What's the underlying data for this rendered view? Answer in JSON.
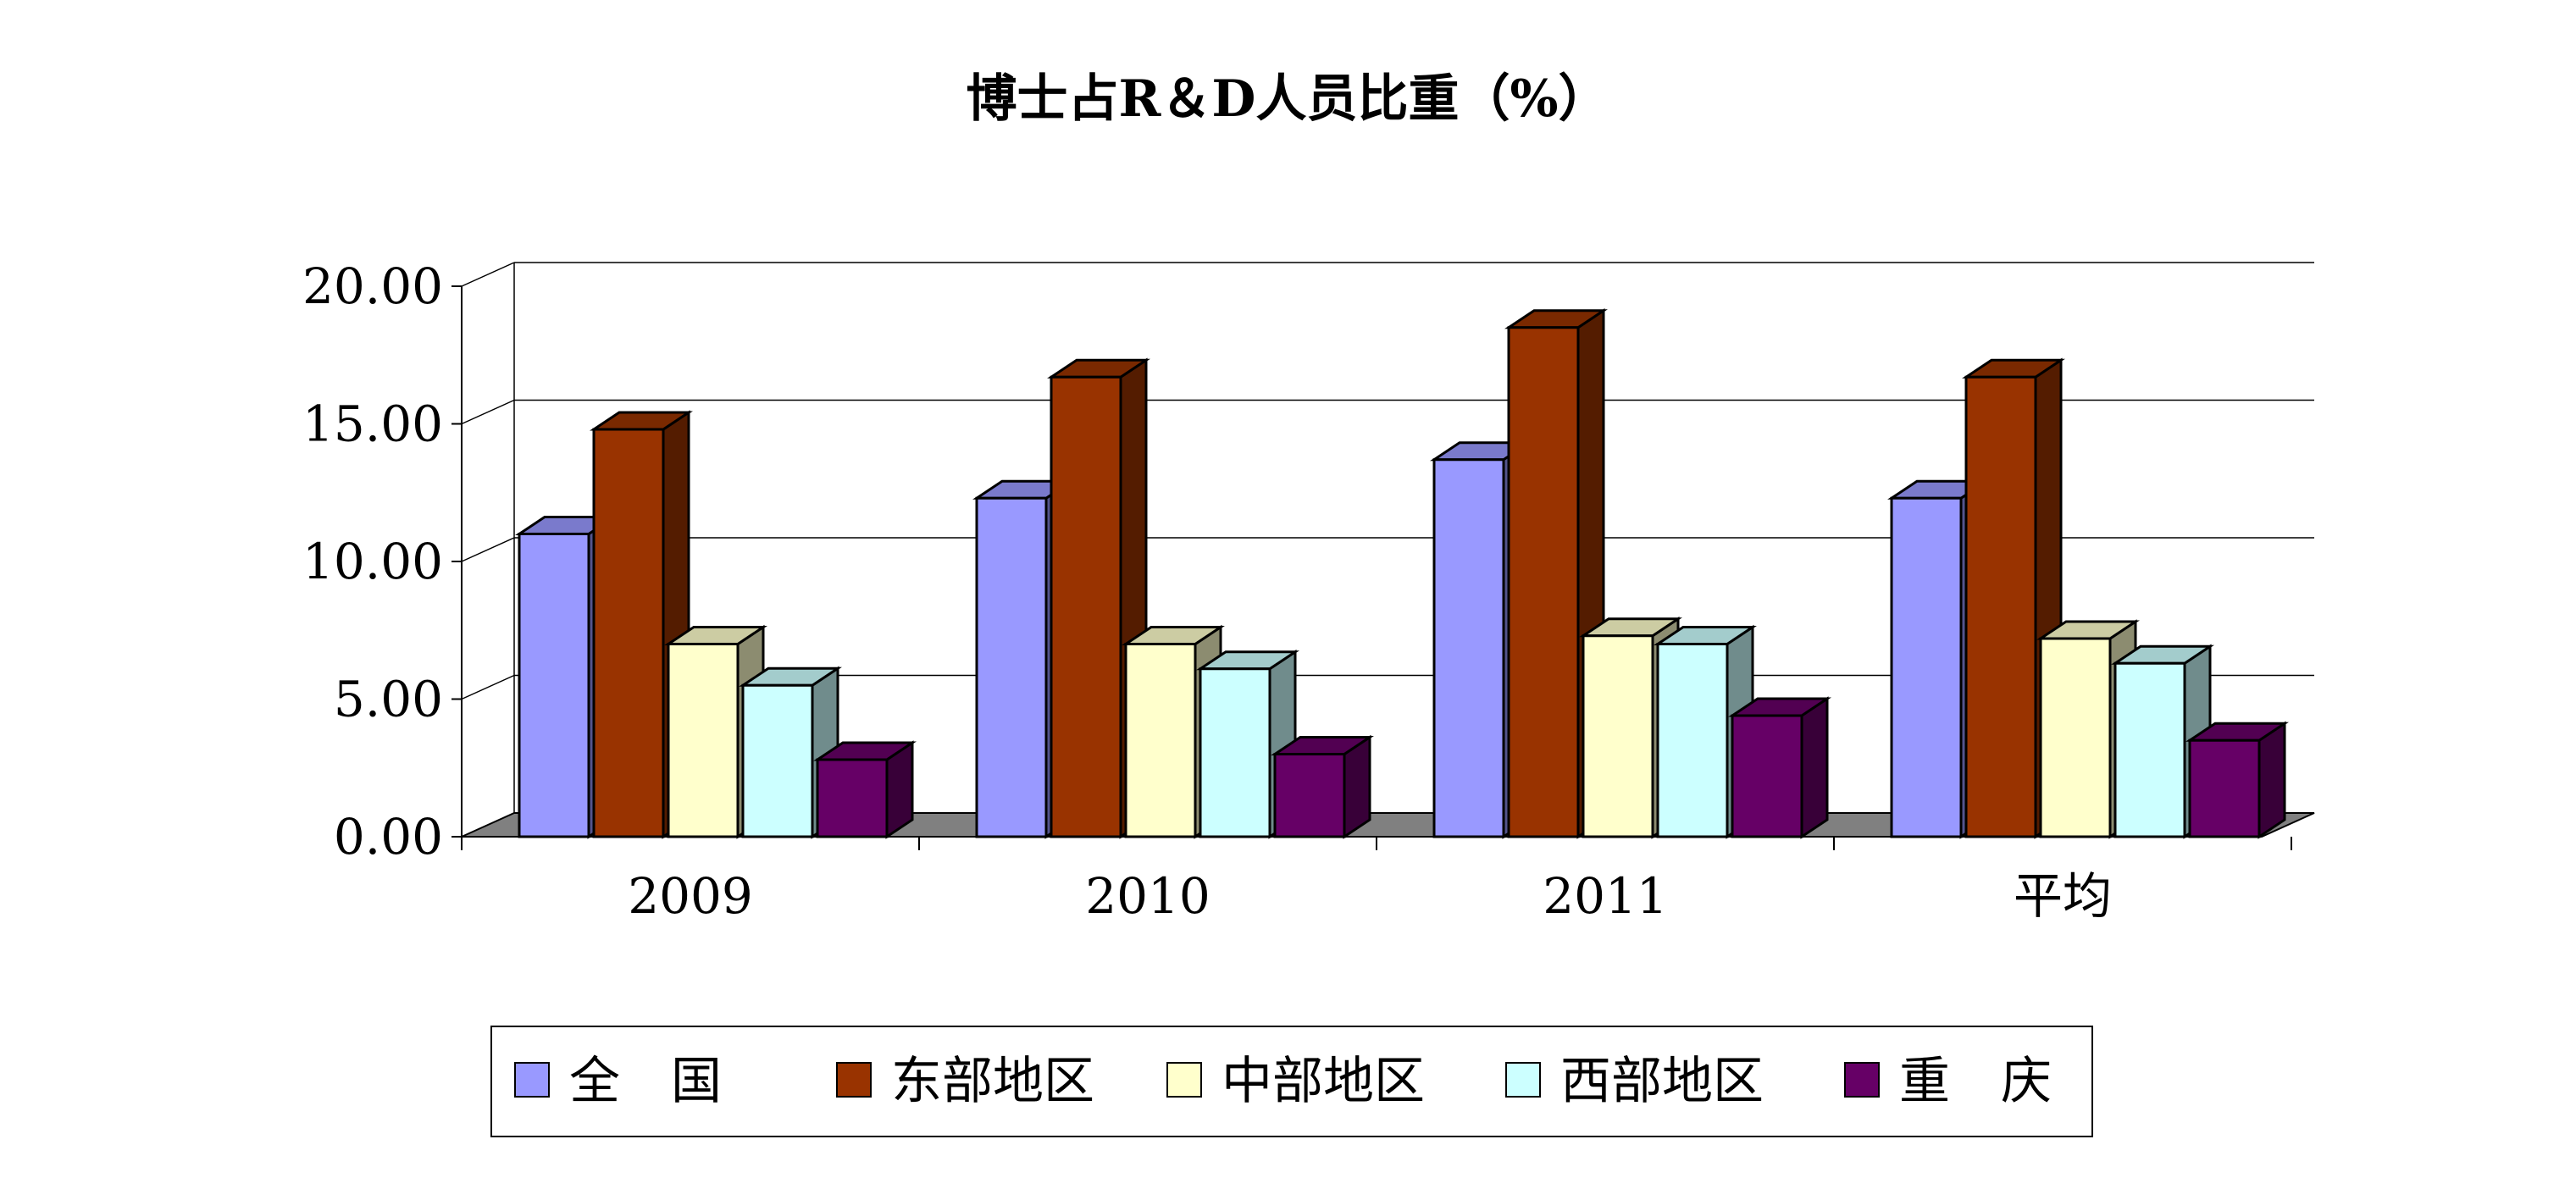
{
  "chart_data": {
    "type": "bar",
    "title": "博士占R＆D人员比重（%）",
    "categories": [
      "2009",
      "2010",
      "2011",
      "平均"
    ],
    "series": [
      {
        "name": "全　国",
        "color": "#9999FF",
        "values": [
          11.0,
          12.3,
          13.7,
          12.3
        ]
      },
      {
        "name": "东部地区",
        "color": "#993300",
        "values": [
          14.8,
          16.7,
          18.5,
          16.7
        ]
      },
      {
        "name": "中部地区",
        "color": "#FFFFCC",
        "values": [
          7.0,
          7.0,
          7.3,
          7.2
        ]
      },
      {
        "name": "西部地区",
        "color": "#CCFFFF",
        "values": [
          5.5,
          6.1,
          7.0,
          6.3
        ]
      },
      {
        "name": "重　庆",
        "color": "#660066",
        "values": [
          2.8,
          3.0,
          4.4,
          3.5
        ]
      }
    ],
    "y_ticks": [
      "0.00",
      "5.00",
      "10.00",
      "15.00",
      "20.00"
    ],
    "ylim": [
      0,
      20
    ],
    "grid": true,
    "legend_position": "bottom",
    "three_d": true
  }
}
